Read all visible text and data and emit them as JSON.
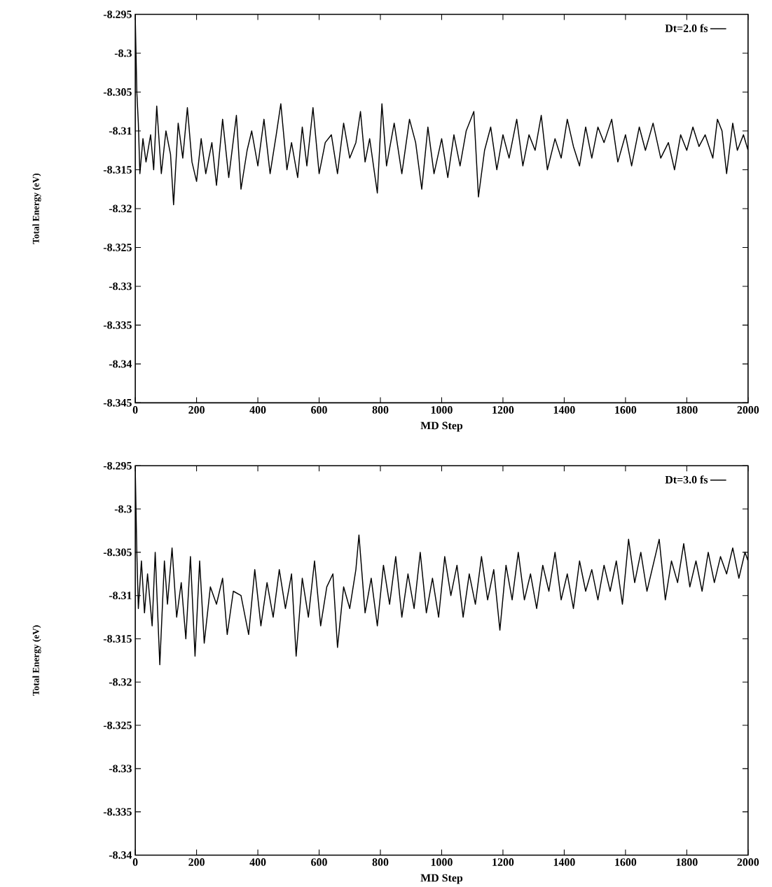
{
  "chart_data": [
    {
      "type": "line",
      "xlabel": "MD Step",
      "ylabel": "Total Energy (eV)",
      "legend": "top right",
      "xlim": [
        0,
        2000
      ],
      "ylim": [
        -8.345,
        -8.295
      ],
      "xticks": [
        0,
        200,
        400,
        600,
        800,
        1000,
        1200,
        1400,
        1600,
        1800,
        2000
      ],
      "yticks": [
        -8.345,
        -8.34,
        -8.335,
        -8.33,
        -8.325,
        -8.32,
        -8.315,
        -8.31,
        -8.305,
        -8.3,
        -8.295
      ],
      "x": [
        0,
        5,
        10,
        15,
        25,
        35,
        50,
        60,
        70,
        85,
        100,
        115,
        125,
        140,
        155,
        170,
        185,
        200,
        215,
        230,
        250,
        265,
        285,
        305,
        330,
        345,
        365,
        380,
        400,
        420,
        440,
        460,
        475,
        495,
        510,
        530,
        545,
        560,
        580,
        600,
        620,
        640,
        660,
        680,
        700,
        720,
        735,
        750,
        765,
        790,
        805,
        820,
        845,
        870,
        895,
        915,
        935,
        955,
        975,
        1000,
        1020,
        1040,
        1060,
        1080,
        1105,
        1120,
        1140,
        1160,
        1180,
        1200,
        1220,
        1245,
        1265,
        1285,
        1305,
        1325,
        1345,
        1370,
        1390,
        1410,
        1430,
        1450,
        1470,
        1490,
        1510,
        1530,
        1555,
        1575,
        1600,
        1620,
        1645,
        1665,
        1690,
        1715,
        1740,
        1760,
        1780,
        1800,
        1820,
        1840,
        1860,
        1885,
        1900,
        1915,
        1930,
        1950,
        1965,
        1985,
        2000
      ],
      "series": [
        {
          "name": "Dt=2.0 fs",
          "color": "#000000",
          "values": [
            -8.2955,
            -8.305,
            -8.309,
            -8.3155,
            -8.311,
            -8.314,
            -8.3105,
            -8.315,
            -8.3068,
            -8.3155,
            -8.31,
            -8.313,
            -8.3195,
            -8.309,
            -8.3135,
            -8.307,
            -8.314,
            -8.3165,
            -8.311,
            -8.3155,
            -8.3115,
            -8.317,
            -8.3085,
            -8.316,
            -8.308,
            -8.3175,
            -8.3125,
            -8.31,
            -8.3145,
            -8.3085,
            -8.3155,
            -8.3105,
            -8.3065,
            -8.315,
            -8.3115,
            -8.316,
            -8.3095,
            -8.3145,
            -8.307,
            -8.3155,
            -8.3115,
            -8.3105,
            -8.3155,
            -8.309,
            -8.3135,
            -8.3115,
            -8.3075,
            -8.314,
            -8.311,
            -8.318,
            -8.3065,
            -8.3145,
            -8.309,
            -8.3155,
            -8.3085,
            -8.3115,
            -8.3175,
            -8.3095,
            -8.3155,
            -8.311,
            -8.316,
            -8.3105,
            -8.3145,
            -8.31,
            -8.3075,
            -8.3185,
            -8.3125,
            -8.3095,
            -8.315,
            -8.3105,
            -8.3135,
            -8.3085,
            -8.3145,
            -8.3105,
            -8.3125,
            -8.308,
            -8.315,
            -8.311,
            -8.3135,
            -8.3085,
            -8.312,
            -8.3145,
            -8.3095,
            -8.3135,
            -8.3095,
            -8.3115,
            -8.3085,
            -8.314,
            -8.3105,
            -8.3145,
            -8.3095,
            -8.3125,
            -8.309,
            -8.3135,
            -8.3115,
            -8.315,
            -8.3105,
            -8.3125,
            -8.3095,
            -8.312,
            -8.3105,
            -8.3135,
            -8.3085,
            -8.31,
            -8.3155,
            -8.309,
            -8.3125,
            -8.3105,
            -8.3125
          ]
        }
      ]
    },
    {
      "type": "line",
      "xlabel": "MD Step",
      "ylabel": "Total Energy (eV)",
      "legend": "top right",
      "xlim": [
        0,
        2000
      ],
      "ylim": [
        -8.34,
        -8.295
      ],
      "xticks": [
        0,
        200,
        400,
        600,
        800,
        1000,
        1200,
        1400,
        1600,
        1800,
        2000
      ],
      "yticks": [
        -8.34,
        -8.335,
        -8.33,
        -8.325,
        -8.32,
        -8.315,
        -8.31,
        -8.305,
        -8.3,
        -8.295
      ],
      "x": [
        0,
        5,
        10,
        20,
        30,
        40,
        55,
        65,
        80,
        95,
        105,
        120,
        135,
        150,
        165,
        180,
        195,
        210,
        225,
        245,
        265,
        285,
        300,
        320,
        345,
        370,
        390,
        410,
        430,
        450,
        470,
        490,
        510,
        525,
        545,
        565,
        585,
        605,
        625,
        645,
        660,
        680,
        700,
        720,
        730,
        750,
        770,
        790,
        810,
        830,
        850,
        870,
        890,
        910,
        930,
        950,
        970,
        990,
        1010,
        1030,
        1050,
        1070,
        1090,
        1110,
        1130,
        1150,
        1170,
        1190,
        1210,
        1230,
        1250,
        1270,
        1290,
        1310,
        1330,
        1350,
        1370,
        1390,
        1410,
        1430,
        1450,
        1470,
        1490,
        1510,
        1530,
        1550,
        1570,
        1590,
        1610,
        1630,
        1650,
        1670,
        1690,
        1710,
        1730,
        1750,
        1770,
        1790,
        1810,
        1830,
        1850,
        1870,
        1890,
        1910,
        1930,
        1950,
        1970,
        1990,
        2000
      ],
      "series": [
        {
          "name": "Dt=3.0 fs",
          "color": "#000000",
          "values": [
            -8.2955,
            -8.305,
            -8.3115,
            -8.306,
            -8.312,
            -8.3075,
            -8.3135,
            -8.305,
            -8.318,
            -8.306,
            -8.311,
            -8.3045,
            -8.3125,
            -8.3085,
            -8.315,
            -8.3055,
            -8.317,
            -8.306,
            -8.3155,
            -8.309,
            -8.311,
            -8.308,
            -8.3145,
            -8.3095,
            -8.31,
            -8.3145,
            -8.307,
            -8.3135,
            -8.3085,
            -8.3125,
            -8.307,
            -8.3115,
            -8.3075,
            -8.317,
            -8.308,
            -8.3125,
            -8.306,
            -8.3135,
            -8.309,
            -8.3075,
            -8.316,
            -8.309,
            -8.3115,
            -8.307,
            -8.303,
            -8.312,
            -8.308,
            -8.3135,
            -8.3065,
            -8.311,
            -8.3055,
            -8.3125,
            -8.3075,
            -8.3115,
            -8.305,
            -8.312,
            -8.308,
            -8.3125,
            -8.3055,
            -8.31,
            -8.3065,
            -8.3125,
            -8.3075,
            -8.311,
            -8.3055,
            -8.3105,
            -8.307,
            -8.314,
            -8.3065,
            -8.3105,
            -8.305,
            -8.3105,
            -8.3075,
            -8.3115,
            -8.3065,
            -8.3095,
            -8.305,
            -8.3105,
            -8.3075,
            -8.3115,
            -8.306,
            -8.3095,
            -8.307,
            -8.3105,
            -8.3065,
            -8.3095,
            -8.306,
            -8.311,
            -8.3035,
            -8.3085,
            -8.305,
            -8.3095,
            -8.3065,
            -8.3035,
            -8.3105,
            -8.306,
            -8.3085,
            -8.304,
            -8.309,
            -8.306,
            -8.3095,
            -8.305,
            -8.3085,
            -8.3055,
            -8.3075,
            -8.3045,
            -8.308,
            -8.305,
            -8.306
          ]
        }
      ]
    }
  ]
}
